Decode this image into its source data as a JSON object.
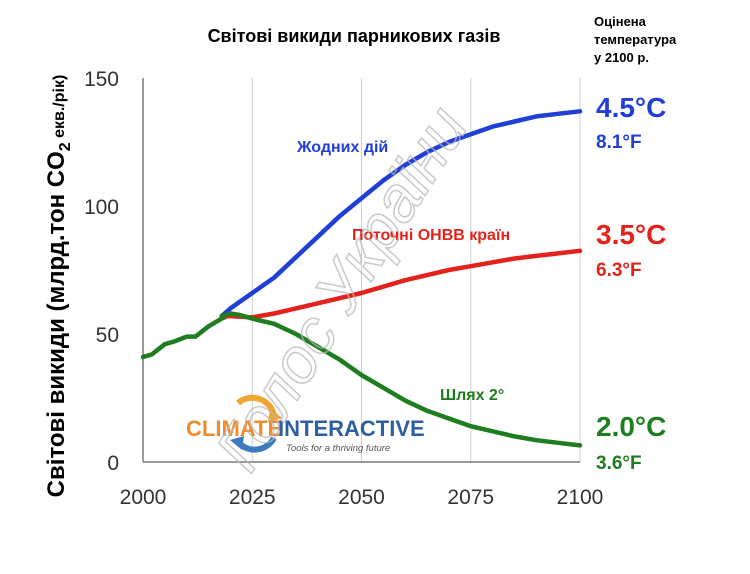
{
  "chart_data": {
    "type": "line",
    "title": "Світові викиди парникових газів",
    "ylabel_main": "Світові викиди (млрд.тон CO",
    "ylabel_sub": "2",
    "ylabel_unit": " екв./рік)",
    "xlim": [
      2000,
      2100
    ],
    "ylim": [
      0,
      150
    ],
    "x_ticks": [
      2000,
      2025,
      2050,
      2075,
      2100
    ],
    "y_ticks": [
      0,
      50,
      100,
      150
    ],
    "grid": "vertical lines only",
    "temp_header": [
      "Оцінена",
      "температура",
      "у 2100 р."
    ],
    "historical": {
      "color": "#1e7d1e",
      "x": [
        2000,
        2002,
        2005,
        2007,
        2010,
        2012,
        2015,
        2018,
        2020
      ],
      "y": [
        41,
        42,
        46,
        47,
        49,
        49,
        53,
        56,
        57.5
      ]
    },
    "series": [
      {
        "name": "Жодних дій",
        "color": "#1f3fd6",
        "temp_c": "4.5°C",
        "temp_f": "8.1°F",
        "x": [
          2018,
          2020,
          2025,
          2030,
          2035,
          2040,
          2045,
          2050,
          2055,
          2060,
          2065,
          2070,
          2075,
          2080,
          2085,
          2090,
          2095,
          2100
        ],
        "y": [
          57,
          60,
          66,
          72,
          80,
          88,
          96,
          103,
          110,
          116,
          121,
          125,
          128,
          131,
          133,
          135,
          136,
          137
        ]
      },
      {
        "name": "Поточні ОНВВ країн",
        "color": "#e3221b",
        "temp_c": "3.5°C",
        "temp_f": "6.3°F",
        "x": [
          2018,
          2020,
          2025,
          2030,
          2035,
          2040,
          2045,
          2050,
          2055,
          2060,
          2065,
          2070,
          2075,
          2080,
          2085,
          2090,
          2095,
          2100
        ],
        "y": [
          57,
          57,
          56.5,
          58,
          60,
          62,
          64,
          66,
          68.5,
          71,
          73,
          75,
          76.5,
          78,
          79.5,
          80.5,
          81.5,
          82.5
        ]
      },
      {
        "name": "Шлях 2°",
        "color": "#1e7d1e",
        "temp_c": "2.0°C",
        "temp_f": "3.6°F",
        "x": [
          2018,
          2020,
          2022,
          2025,
          2030,
          2035,
          2040,
          2045,
          2050,
          2055,
          2060,
          2065,
          2070,
          2075,
          2080,
          2085,
          2090,
          2095,
          2100
        ],
        "y": [
          57,
          58,
          57.5,
          56,
          54,
          50,
          45,
          40,
          34,
          29,
          24,
          20,
          17,
          14,
          12,
          10,
          8.5,
          7.5,
          6.5
        ]
      }
    ],
    "logo": {
      "brand_left": "CLIMATE",
      "brand_right": "INTERACTIVE",
      "tagline": "Tools for a thriving future"
    },
    "watermark": "Голос України"
  }
}
